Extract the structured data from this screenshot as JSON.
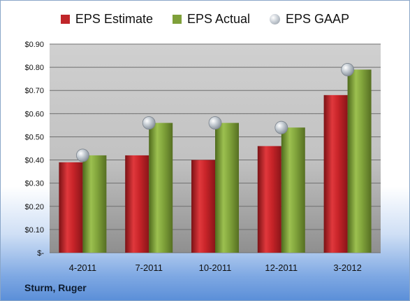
{
  "chart_data": {
    "type": "bar",
    "categories": [
      "4-2011",
      "7-2011",
      "10-2011",
      "12-2011",
      "3-2012"
    ],
    "series": [
      {
        "name": "EPS Estimate",
        "values": [
          0.39,
          0.42,
          0.4,
          0.46,
          0.68
        ],
        "color": "#c0262a"
      },
      {
        "name": "EPS Actual",
        "values": [
          0.42,
          0.56,
          0.56,
          0.54,
          0.79
        ],
        "color": "#7fa03a"
      },
      {
        "name": "EPS GAAP",
        "values": [
          0.42,
          0.56,
          0.56,
          0.54,
          0.79
        ],
        "color": "#a9b1ba",
        "marker": "sphere"
      }
    ],
    "yticks": [
      {
        "value": 0,
        "label": "$-"
      },
      {
        "value": 0.1,
        "label": "$0.10"
      },
      {
        "value": 0.2,
        "label": "$0.20"
      },
      {
        "value": 0.3,
        "label": "$0.30"
      },
      {
        "value": 0.4,
        "label": "$0.40"
      },
      {
        "value": 0.5,
        "label": "$0.50"
      },
      {
        "value": 0.6,
        "label": "$0.60"
      },
      {
        "value": 0.7,
        "label": "$0.70"
      },
      {
        "value": 0.8,
        "label": "$0.80"
      },
      {
        "value": 0.9,
        "label": "$0.90"
      }
    ],
    "ylim": [
      0,
      0.9
    ],
    "grid": true,
    "legend_position": "top",
    "caption": "Sturm, Ruger"
  }
}
